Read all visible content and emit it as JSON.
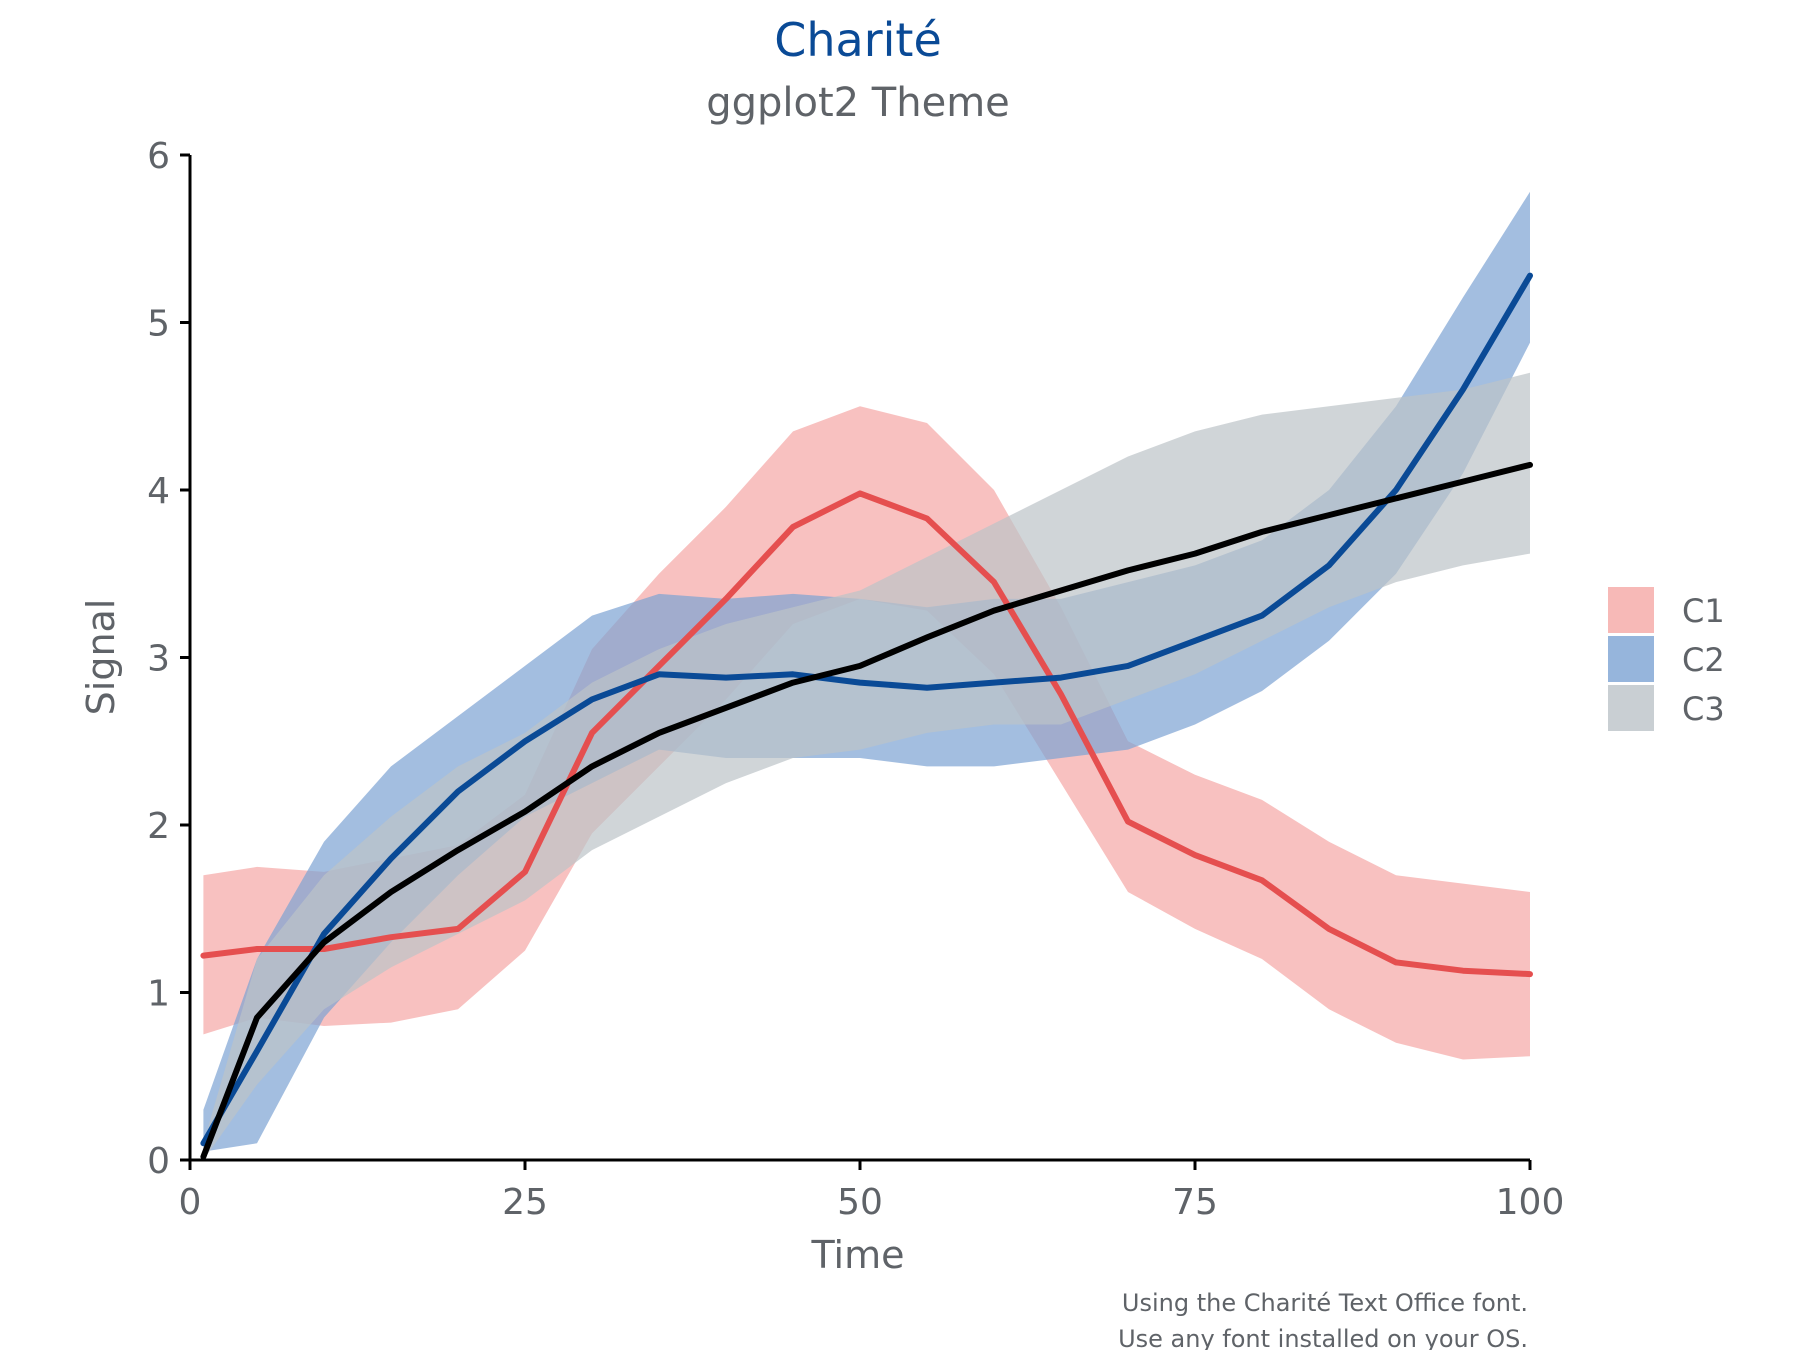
{
  "chart_data": {
    "type": "line",
    "title": "Charité",
    "subtitle": "ggplot2 Theme",
    "xlabel": "Time",
    "ylabel": "Signal",
    "xlim": [
      0,
      100
    ],
    "ylim": [
      0,
      6
    ],
    "xticks": [
      0,
      25,
      50,
      75,
      100
    ],
    "yticks": [
      0,
      1,
      2,
      3,
      4,
      5,
      6
    ],
    "grid": false,
    "legend_position": "right",
    "caption_lines": [
      "Using the Charité Text Office font.",
      "Use any font installed on your OS."
    ],
    "x": [
      1,
      5,
      10,
      15,
      20,
      25,
      30,
      35,
      40,
      45,
      50,
      55,
      60,
      65,
      70,
      75,
      80,
      85,
      90,
      95,
      100
    ],
    "series": [
      {
        "name": "C1",
        "line_color": "#e54f4f",
        "band_color": "#f5a7a5",
        "values": [
          1.22,
          1.26,
          1.26,
          1.33,
          1.38,
          1.72,
          2.55,
          2.95,
          3.35,
          3.78,
          3.98,
          3.83,
          3.45,
          2.78,
          2.02,
          1.82,
          1.67,
          1.38,
          1.18,
          1.13,
          1.11
        ],
        "lower": [
          0.75,
          0.85,
          0.8,
          0.82,
          0.9,
          1.25,
          1.95,
          2.35,
          2.75,
          3.2,
          3.35,
          3.28,
          2.9,
          2.25,
          1.6,
          1.38,
          1.2,
          0.9,
          0.7,
          0.6,
          0.62
        ],
        "upper": [
          1.7,
          1.75,
          1.72,
          1.8,
          1.88,
          2.18,
          3.05,
          3.5,
          3.9,
          4.35,
          4.5,
          4.4,
          4.0,
          3.3,
          2.5,
          2.3,
          2.15,
          1.9,
          1.7,
          1.65,
          1.6
        ]
      },
      {
        "name": "C2",
        "line_color": "#0a4a96",
        "band_color": "#7ca3d3",
        "values": [
          0.1,
          0.65,
          1.35,
          1.8,
          2.2,
          2.5,
          2.75,
          2.9,
          2.88,
          2.9,
          2.85,
          2.82,
          2.85,
          2.88,
          2.95,
          3.1,
          3.25,
          3.55,
          4.0,
          4.6,
          5.28
        ],
        "lower": [
          0.05,
          0.1,
          0.85,
          1.3,
          1.7,
          2.05,
          2.25,
          2.45,
          2.4,
          2.4,
          2.4,
          2.35,
          2.35,
          2.4,
          2.45,
          2.6,
          2.8,
          3.1,
          3.5,
          4.1,
          4.88
        ],
        "upper": [
          0.3,
          1.2,
          1.9,
          2.35,
          2.65,
          2.95,
          3.25,
          3.38,
          3.35,
          3.38,
          3.35,
          3.3,
          3.35,
          3.35,
          3.45,
          3.55,
          3.7,
          4.0,
          4.5,
          5.15,
          5.78
        ]
      },
      {
        "name": "C3",
        "line_color": "#000000",
        "band_color": "#bcc3c8",
        "values": [
          0.02,
          0.85,
          1.3,
          1.6,
          1.85,
          2.08,
          2.35,
          2.55,
          2.7,
          2.85,
          2.95,
          3.12,
          3.28,
          3.4,
          3.52,
          3.62,
          3.75,
          3.85,
          3.95,
          4.05,
          4.15
        ],
        "lower": [
          0.0,
          0.45,
          0.9,
          1.15,
          1.35,
          1.55,
          1.85,
          2.05,
          2.25,
          2.4,
          2.45,
          2.55,
          2.6,
          2.6,
          2.75,
          2.9,
          3.1,
          3.3,
          3.45,
          3.55,
          3.62
        ],
        "upper": [
          0.1,
          1.2,
          1.7,
          2.05,
          2.35,
          2.55,
          2.85,
          3.05,
          3.2,
          3.3,
          3.4,
          3.6,
          3.8,
          4.0,
          4.2,
          4.35,
          4.45,
          4.5,
          4.55,
          4.6,
          4.7
        ]
      }
    ]
  },
  "colors": {
    "title": "#0a4a96",
    "text": "#5f6368",
    "axis": "#000000"
  }
}
